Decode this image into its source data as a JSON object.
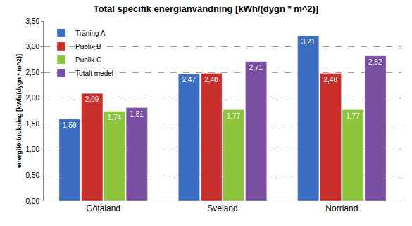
{
  "chart_data": {
    "type": "bar",
    "title": "Total specifik energianvändning [kWh/(dygn * m^2)]",
    "y_label": "energiförbrukning [kWh/(dygn * m^2)]",
    "categories": [
      "Götaland",
      "Sveland",
      "Norrland"
    ],
    "series": [
      {
        "name": "Träning A",
        "color": "#3c6fc4",
        "values": [
          1.59,
          2.47,
          3.21
        ],
        "value_labels": [
          "1,59",
          "2,47",
          "3,21"
        ]
      },
      {
        "name": "Publik B",
        "color": "#c9302c",
        "values": [
          2.09,
          2.48,
          2.48
        ],
        "value_labels": [
          "2,09",
          "2,48",
          "2,48"
        ]
      },
      {
        "name": "Publik C",
        "color": "#8cc43c",
        "values": [
          1.74,
          1.77,
          1.77
        ],
        "value_labels": [
          "1,74",
          "1,77",
          "1,77"
        ]
      },
      {
        "name": "Totalt medel",
        "color": "#7a4fa3",
        "values": [
          1.81,
          2.71,
          2.82
        ],
        "value_labels": [
          "1,81",
          "2,71",
          "2,82"
        ]
      }
    ],
    "ylim": [
      0,
      3.5
    ],
    "yticks": [
      {
        "value": 0,
        "label": "0,00"
      },
      {
        "value": 0.5,
        "label": "0,50"
      },
      {
        "value": 1,
        "label": "1,00"
      },
      {
        "value": 1.5,
        "label": "1,50"
      },
      {
        "value": 2,
        "label": "2,00"
      },
      {
        "value": 2.5,
        "label": "2,50"
      },
      {
        "value": 3,
        "label": "3,00"
      },
      {
        "value": 3.5,
        "label": "3,50"
      }
    ],
    "grid": true,
    "legend": "upper left",
    "data_labels": true
  }
}
